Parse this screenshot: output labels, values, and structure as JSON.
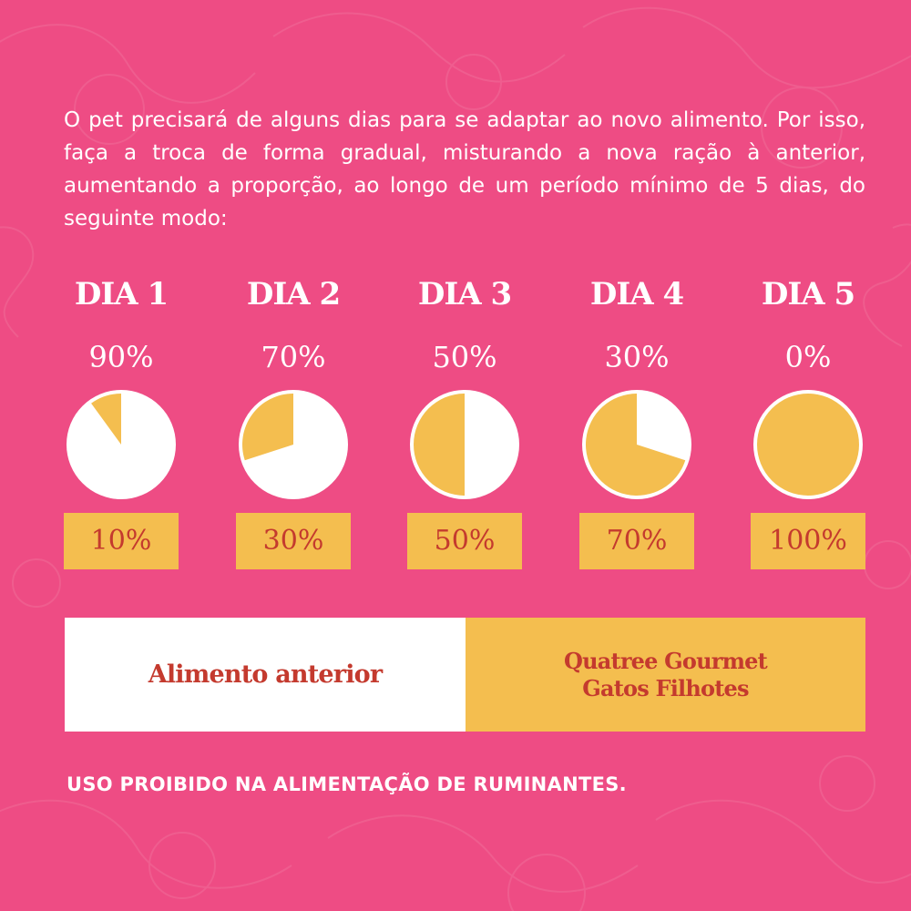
{
  "intro_text": "O pet precisará de alguns dias para se adaptar ao novo alimento. Por isso, faça a troca de forma gradual, misturando a nova ração à anterior, aumentando a proporção, ao longo de um período mínimo de 5 dias, do seguinte modo:",
  "colors": {
    "background": "#ee4c84",
    "previous_food": "#ffffff",
    "new_food": "#f4be4f",
    "label_text": "#c43a2e"
  },
  "schedule": [
    {
      "title": "DIA 1",
      "previous_label": "90%",
      "new_label": "10%",
      "new_fraction": 0.1
    },
    {
      "title": "DIA 2",
      "previous_label": "70%",
      "new_label": "30%",
      "new_fraction": 0.3
    },
    {
      "title": "DIA 3",
      "previous_label": "50%",
      "new_label": "50%",
      "new_fraction": 0.5
    },
    {
      "title": "DIA 4",
      "previous_label": "30%",
      "new_label": "70%",
      "new_fraction": 0.7
    },
    {
      "title": "DIA 5",
      "previous_label": "0%",
      "new_label": "100%",
      "new_fraction": 1.0
    }
  ],
  "legend": {
    "previous_food": "Alimento anterior",
    "new_food_line1": "Quatree Gourmet",
    "new_food_line2": "Gatos Filhotes"
  },
  "warning": "USO PROIBIDO NA ALIMENTAÇÃO DE RUMINANTES."
}
